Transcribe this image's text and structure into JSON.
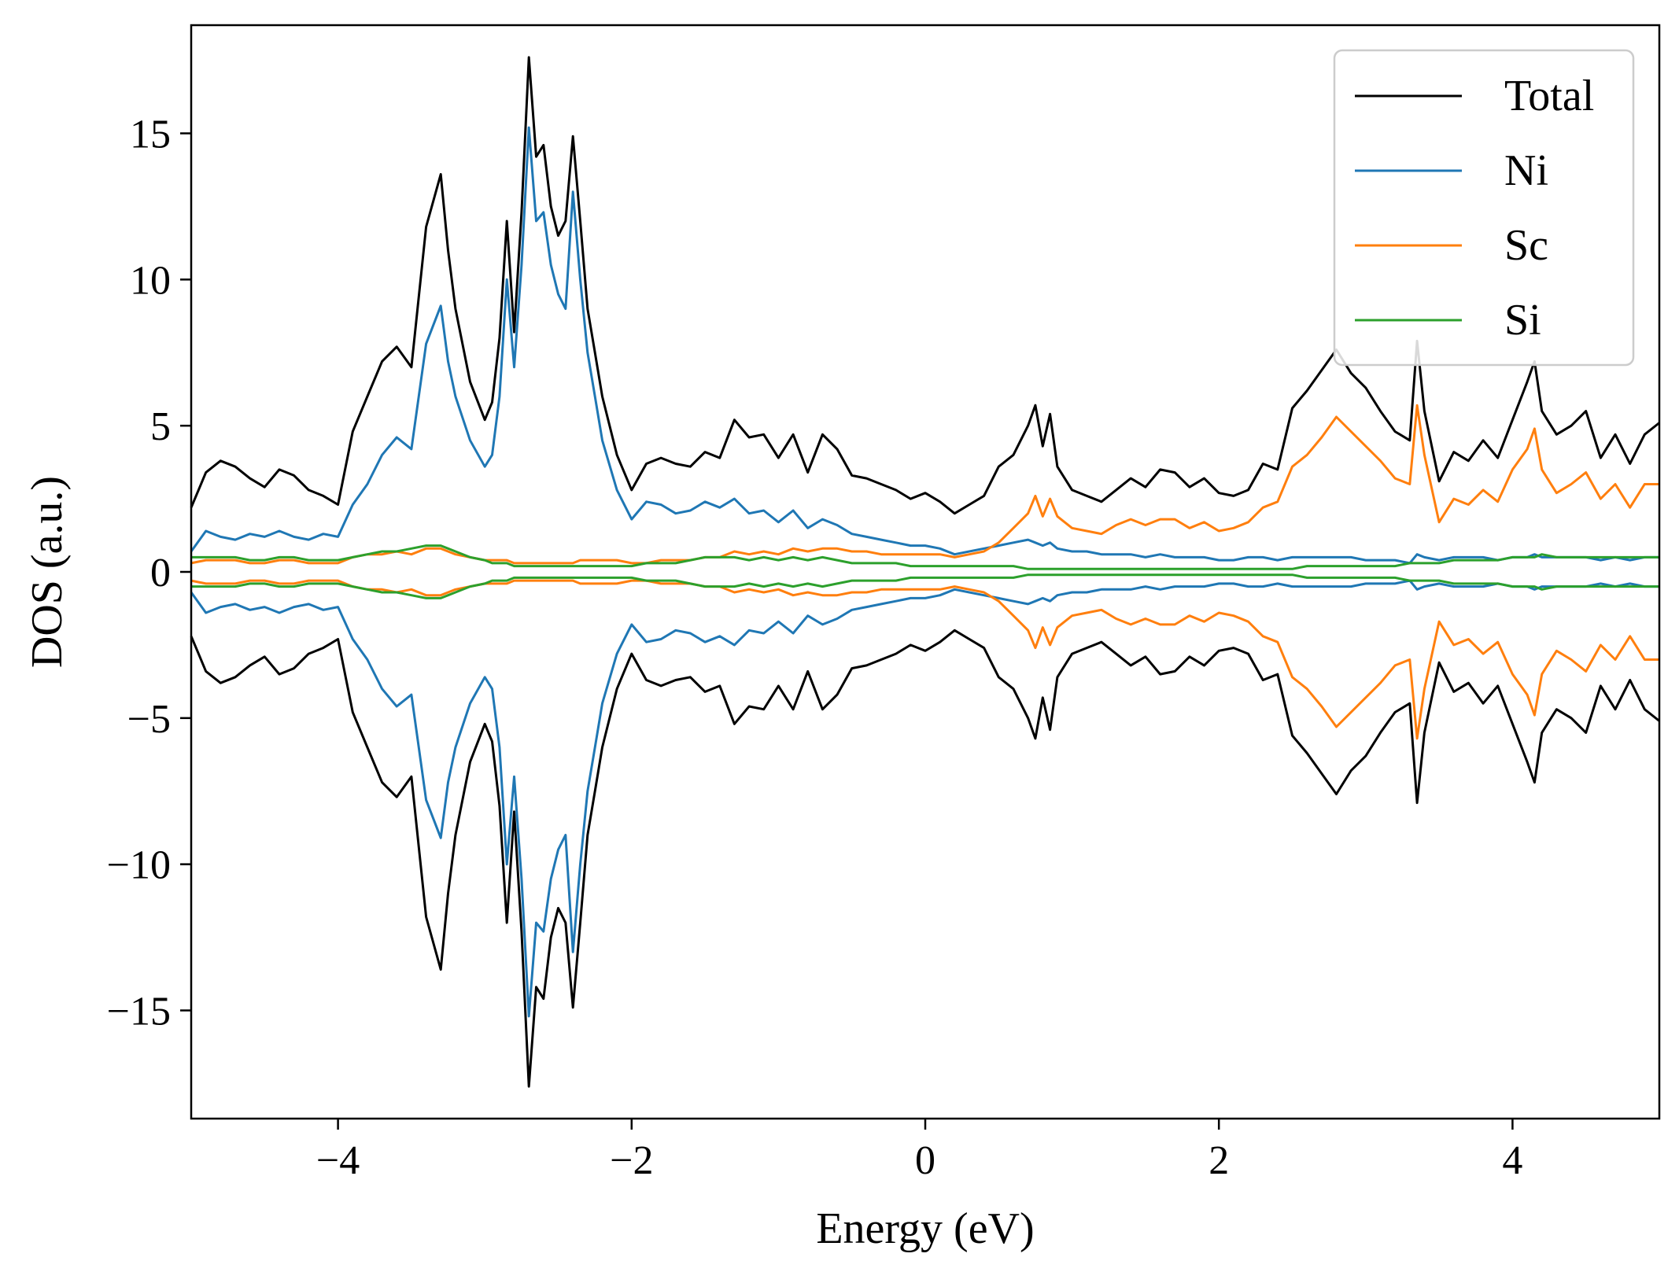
{
  "chart_data": {
    "type": "line",
    "xlabel": "Energy (eV)",
    "ylabel": "DOS (a.u.)",
    "xlim": [
      -5,
      5
    ],
    "ylim": [
      -18.7,
      18.7
    ],
    "xticks": [
      -4,
      -2,
      0,
      2,
      4
    ],
    "xtick_labels": [
      "−4",
      "−2",
      "0",
      "2",
      "4"
    ],
    "yticks": [
      -15,
      -10,
      -5,
      0,
      5,
      10,
      15
    ],
    "ytick_labels": [
      "−15",
      "−10",
      "−5",
      "0",
      "5",
      "10",
      "15"
    ],
    "grid": false,
    "legend_position": "top-right",
    "spin_symmetric": true,
    "x": [
      -5.0,
      -4.9,
      -4.8,
      -4.7,
      -4.6,
      -4.5,
      -4.4,
      -4.3,
      -4.2,
      -4.1,
      -4.0,
      -3.9,
      -3.8,
      -3.7,
      -3.6,
      -3.5,
      -3.4,
      -3.3,
      -3.25,
      -3.2,
      -3.1,
      -3.0,
      -2.95,
      -2.9,
      -2.85,
      -2.8,
      -2.75,
      -2.7,
      -2.65,
      -2.6,
      -2.55,
      -2.5,
      -2.45,
      -2.4,
      -2.35,
      -2.3,
      -2.25,
      -2.2,
      -2.1,
      -2.0,
      -1.9,
      -1.8,
      -1.7,
      -1.6,
      -1.5,
      -1.4,
      -1.3,
      -1.2,
      -1.1,
      -1.0,
      -0.9,
      -0.8,
      -0.7,
      -0.6,
      -0.5,
      -0.4,
      -0.3,
      -0.2,
      -0.1,
      0.0,
      0.1,
      0.2,
      0.3,
      0.4,
      0.5,
      0.6,
      0.7,
      0.75,
      0.8,
      0.85,
      0.9,
      1.0,
      1.1,
      1.2,
      1.3,
      1.4,
      1.5,
      1.6,
      1.7,
      1.8,
      1.9,
      2.0,
      2.1,
      2.2,
      2.3,
      2.4,
      2.5,
      2.6,
      2.7,
      2.8,
      2.9,
      3.0,
      3.1,
      3.2,
      3.3,
      3.35,
      3.4,
      3.5,
      3.6,
      3.7,
      3.8,
      3.9,
      4.0,
      4.1,
      4.15,
      4.2,
      4.3,
      4.4,
      4.5,
      4.6,
      4.7,
      4.8,
      4.9,
      5.0
    ],
    "series": [
      {
        "name": "Total",
        "color": "#000000",
        "values": [
          2.2,
          3.4,
          3.8,
          3.6,
          3.2,
          2.9,
          3.5,
          3.3,
          2.8,
          2.6,
          2.3,
          4.8,
          6.0,
          7.2,
          7.7,
          7.0,
          11.8,
          13.6,
          11.0,
          9.0,
          6.5,
          5.2,
          5.8,
          8.0,
          12.0,
          8.2,
          12.3,
          17.6,
          14.2,
          14.6,
          12.5,
          11.5,
          12.0,
          14.9,
          12.0,
          9.0,
          7.5,
          6.0,
          4.0,
          2.8,
          3.7,
          3.9,
          3.7,
          3.6,
          4.1,
          3.9,
          5.2,
          4.6,
          4.7,
          3.9,
          4.7,
          3.4,
          4.7,
          4.2,
          3.3,
          3.2,
          3.0,
          2.8,
          2.5,
          2.7,
          2.4,
          2.0,
          2.3,
          2.6,
          3.6,
          4.0,
          5.0,
          5.7,
          4.3,
          5.4,
          3.6,
          2.8,
          2.6,
          2.4,
          2.8,
          3.2,
          2.9,
          3.5,
          3.4,
          2.9,
          3.2,
          2.7,
          2.6,
          2.8,
          3.7,
          3.5,
          5.6,
          6.2,
          6.9,
          7.6,
          6.8,
          6.3,
          5.5,
          4.8,
          4.5,
          7.9,
          5.5,
          3.1,
          4.1,
          3.8,
          4.5,
          3.9,
          5.2,
          6.5,
          7.2,
          5.5,
          4.7,
          5.0,
          5.5,
          3.9,
          4.7,
          3.7,
          4.7,
          5.1
        ]
      },
      {
        "name": "Ni",
        "color": "#1f77b4",
        "values": [
          0.7,
          1.4,
          1.2,
          1.1,
          1.3,
          1.2,
          1.4,
          1.2,
          1.1,
          1.3,
          1.2,
          2.3,
          3.0,
          4.0,
          4.6,
          4.2,
          7.8,
          9.1,
          7.2,
          6.0,
          4.5,
          3.6,
          4.0,
          6.0,
          10.0,
          7.0,
          10.5,
          15.2,
          12.0,
          12.3,
          10.5,
          9.5,
          9.0,
          13.0,
          10.0,
          7.5,
          6.0,
          4.5,
          2.8,
          1.8,
          2.4,
          2.3,
          2.0,
          2.1,
          2.4,
          2.2,
          2.5,
          2.0,
          2.1,
          1.7,
          2.1,
          1.5,
          1.8,
          1.6,
          1.3,
          1.2,
          1.1,
          1.0,
          0.9,
          0.9,
          0.8,
          0.6,
          0.7,
          0.8,
          0.9,
          1.0,
          1.1,
          1.0,
          0.9,
          1.0,
          0.8,
          0.7,
          0.7,
          0.6,
          0.6,
          0.6,
          0.5,
          0.6,
          0.5,
          0.5,
          0.5,
          0.4,
          0.4,
          0.5,
          0.5,
          0.4,
          0.5,
          0.5,
          0.5,
          0.5,
          0.5,
          0.4,
          0.4,
          0.4,
          0.3,
          0.6,
          0.5,
          0.4,
          0.5,
          0.5,
          0.5,
          0.4,
          0.5,
          0.5,
          0.6,
          0.5,
          0.5,
          0.5,
          0.5,
          0.4,
          0.5,
          0.4,
          0.5,
          0.5
        ]
      },
      {
        "name": "Sc",
        "color": "#ff7f0e",
        "values": [
          0.3,
          0.4,
          0.4,
          0.4,
          0.3,
          0.3,
          0.4,
          0.4,
          0.3,
          0.3,
          0.3,
          0.5,
          0.6,
          0.6,
          0.7,
          0.6,
          0.8,
          0.8,
          0.7,
          0.6,
          0.5,
          0.4,
          0.4,
          0.4,
          0.4,
          0.3,
          0.3,
          0.3,
          0.3,
          0.3,
          0.3,
          0.3,
          0.3,
          0.3,
          0.4,
          0.4,
          0.4,
          0.4,
          0.4,
          0.3,
          0.3,
          0.4,
          0.4,
          0.4,
          0.5,
          0.5,
          0.7,
          0.6,
          0.7,
          0.6,
          0.8,
          0.7,
          0.8,
          0.8,
          0.7,
          0.7,
          0.6,
          0.6,
          0.6,
          0.6,
          0.6,
          0.5,
          0.6,
          0.7,
          1.0,
          1.5,
          2.0,
          2.6,
          1.9,
          2.5,
          1.9,
          1.5,
          1.4,
          1.3,
          1.6,
          1.8,
          1.6,
          1.8,
          1.8,
          1.5,
          1.7,
          1.4,
          1.5,
          1.7,
          2.2,
          2.4,
          3.6,
          4.0,
          4.6,
          5.3,
          4.8,
          4.3,
          3.8,
          3.2,
          3.0,
          5.7,
          4.0,
          1.7,
          2.5,
          2.3,
          2.8,
          2.4,
          3.5,
          4.2,
          4.9,
          3.5,
          2.7,
          3.0,
          3.4,
          2.5,
          3.0,
          2.2,
          3.0,
          3.0
        ]
      },
      {
        "name": "Si",
        "color": "#2ca02c",
        "values": [
          0.5,
          0.5,
          0.5,
          0.5,
          0.4,
          0.4,
          0.5,
          0.5,
          0.4,
          0.4,
          0.4,
          0.5,
          0.6,
          0.7,
          0.7,
          0.8,
          0.9,
          0.9,
          0.8,
          0.7,
          0.5,
          0.4,
          0.3,
          0.3,
          0.3,
          0.2,
          0.2,
          0.2,
          0.2,
          0.2,
          0.2,
          0.2,
          0.2,
          0.2,
          0.2,
          0.2,
          0.2,
          0.2,
          0.2,
          0.2,
          0.3,
          0.3,
          0.3,
          0.4,
          0.5,
          0.5,
          0.5,
          0.4,
          0.5,
          0.4,
          0.5,
          0.4,
          0.5,
          0.4,
          0.3,
          0.3,
          0.3,
          0.3,
          0.2,
          0.2,
          0.2,
          0.2,
          0.2,
          0.2,
          0.2,
          0.2,
          0.1,
          0.1,
          0.1,
          0.1,
          0.1,
          0.1,
          0.1,
          0.1,
          0.1,
          0.1,
          0.1,
          0.1,
          0.1,
          0.1,
          0.1,
          0.1,
          0.1,
          0.1,
          0.1,
          0.1,
          0.1,
          0.2,
          0.2,
          0.2,
          0.2,
          0.2,
          0.2,
          0.2,
          0.3,
          0.3,
          0.3,
          0.3,
          0.4,
          0.4,
          0.4,
          0.4,
          0.5,
          0.5,
          0.5,
          0.6,
          0.5,
          0.5,
          0.5,
          0.5,
          0.5,
          0.5,
          0.5,
          0.5
        ]
      }
    ]
  }
}
